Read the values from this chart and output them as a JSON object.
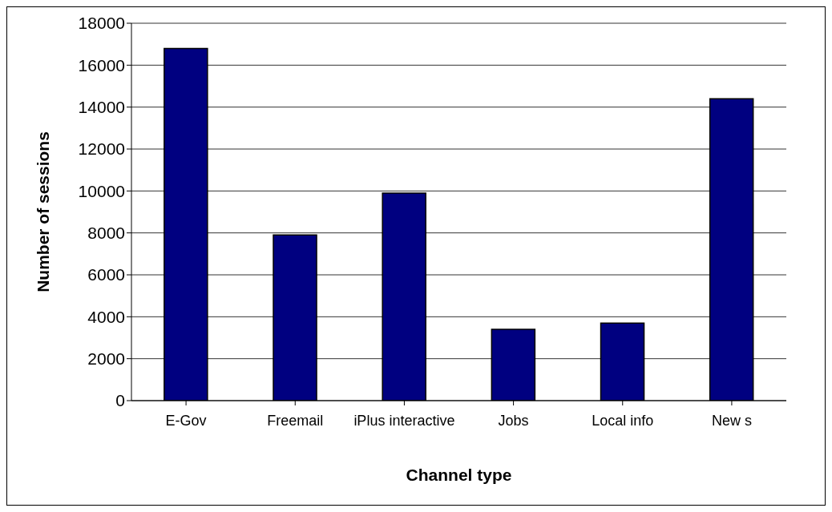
{
  "chart_data": {
    "type": "bar",
    "xlabel": "Channel type",
    "ylabel": "Number of sessions",
    "categories": [
      "E-Gov",
      "Freemail",
      "iPlus interactive",
      "Jobs",
      "Local info",
      "New s"
    ],
    "values": [
      16800,
      7900,
      9900,
      3400,
      3700,
      14400
    ],
    "color": "#000080",
    "ylim": [
      0,
      18000
    ],
    "yticks": [
      0,
      2000,
      4000,
      6000,
      8000,
      10000,
      12000,
      14000,
      16000,
      18000
    ],
    "grid": "y",
    "legend": false
  }
}
